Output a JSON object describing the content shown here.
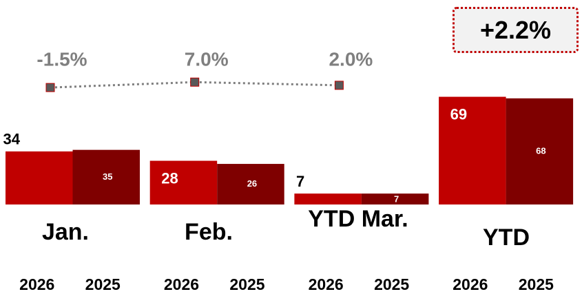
{
  "chart_data": {
    "type": "bar",
    "categories": [
      "Jan.",
      "Feb.",
      "YTD Mar.",
      "YTD"
    ],
    "series": [
      {
        "name": "2026",
        "color": "#c00000",
        "values": [
          34,
          28,
          7,
          69
        ]
      },
      {
        "name": "2025",
        "color": "#7f0000",
        "values": [
          35,
          26,
          7,
          68
        ]
      }
    ],
    "ylim": [
      0,
      131
    ],
    "growth": {
      "type": "line",
      "color": "#595959",
      "axis": "y2",
      "values": [
        -1.5,
        7.0,
        2.0
      ],
      "value_labels": [
        "-1.5%",
        "7.0%",
        "2.0%"
      ]
    },
    "y2lim": [
      -10,
      17
    ],
    "annotation": "+2.2%"
  }
}
